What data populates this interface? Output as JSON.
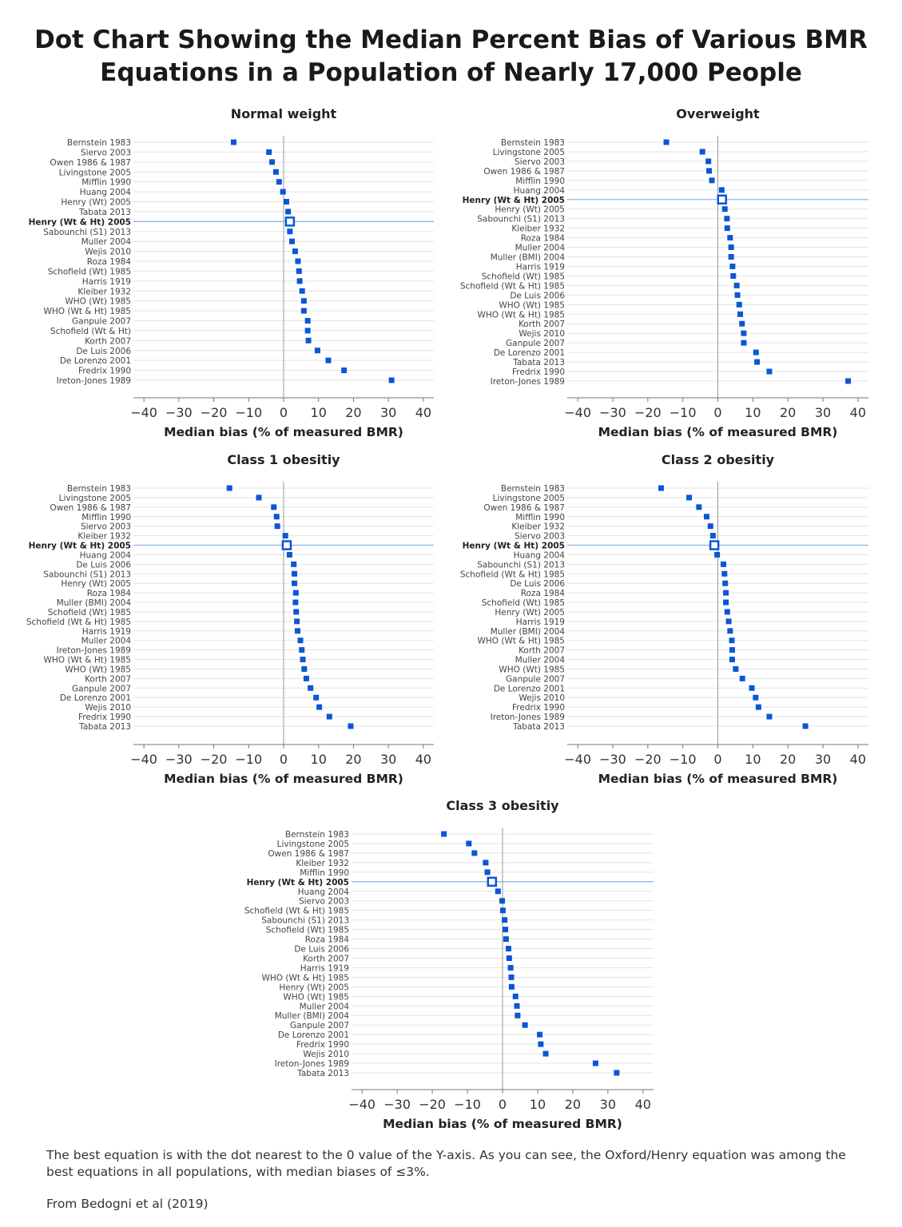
{
  "title_line1": "Dot Chart Showing the Median Percent Bias of Various BMR",
  "title_line2": "Equations in a Population of Nearly 17,000 People",
  "footer": {
    "note": "The best equation is with the dot nearest to the 0 value of the Y-axis. As you can see, the Oxford/Henry equation was among the best equations in all populations, with median biases of ≤3%.",
    "source": "From Bedogni et al (2019)"
  },
  "colors": {
    "marker": "#0a56d6",
    "highlight_line": "#8fb3ec",
    "grid": "#e3e3e3",
    "zero_line": "#999999"
  },
  "chart_data": [
    {
      "type": "scatter",
      "title": "Normal weight",
      "xlabel": "Median bias (% of measured BMR)",
      "ylabel": "",
      "xlim": [
        -43,
        43
      ],
      "ticks": [
        -40,
        -30,
        -20,
        -10,
        0,
        10,
        20,
        30,
        40
      ],
      "grid": true,
      "highlight": "Henry (Wt & Ht) 2005",
      "categories": [
        "Bernstein 1983",
        "Siervo 2003",
        "Owen 1986 & 1987",
        "Livingstone 2005",
        "Mifflin 1990",
        "Huang 2004",
        "Henry (Wt) 2005",
        "Tabata 2013",
        "Henry (Wt & Ht) 2005",
        "Sabounchi (S1) 2013",
        "Muller 2004",
        "Wejis 2010",
        "Roza 1984",
        "Schofield (Wt) 1985",
        "Harris 1919",
        "Kleiber 1932",
        "WHO (Wt) 1985",
        "WHO (Wt & Ht) 1985",
        "Ganpule 2007",
        "Schofield (Wt & Ht)",
        "Korth 2007",
        "De Luis 2006",
        "De Lorenzo 2001",
        "Fredrix 1990",
        "Ireton-Jones 1989"
      ],
      "values": [
        -14.3,
        -4.2,
        -3.3,
        -2.2,
        -1.3,
        -0.2,
        0.8,
        1.3,
        1.8,
        1.8,
        2.4,
        3.3,
        4.1,
        4.4,
        4.6,
        5.3,
        5.8,
        5.8,
        6.9,
        6.9,
        7.1,
        9.7,
        12.8,
        17.3,
        30.9
      ]
    },
    {
      "type": "scatter",
      "title": "Overweight",
      "xlabel": "Median bias (% of measured BMR)",
      "ylabel": "",
      "xlim": [
        -43,
        43
      ],
      "ticks": [
        -40,
        -30,
        -20,
        -10,
        0,
        10,
        20,
        30,
        40
      ],
      "grid": true,
      "highlight": "Henry (Wt & Ht) 2005",
      "categories": [
        "Bernstein 1983",
        "Livingstone 2005",
        "Siervo 2003",
        "Owen 1986 & 1987",
        "Mifflin 1990",
        "Huang 2004",
        "Henry (Wt & Ht) 2005",
        "Henry (Wt) 2005",
        "Sabounchi (S1) 2013",
        "Kleiber 1932",
        "Roza 1984",
        "Muller 2004",
        "Muller (BMI) 2004",
        "Harris 1919",
        "Schofield (Wt) 1985",
        "Schofield (Wt & Ht) 1985",
        "De Luis 2006",
        "WHO (Wt) 1985",
        "WHO (Wt & Ht) 1985",
        "Korth 2007",
        "Wejis 2010",
        "Ganpule 2007",
        "De Lorenzo 2001",
        "Tabata 2013",
        "Fredrix 1990",
        "Ireton-Jones 1989"
      ],
      "values": [
        -14.7,
        -4.4,
        -2.7,
        -2.5,
        -1.7,
        1.1,
        1.2,
        2.0,
        2.6,
        2.7,
        3.5,
        3.8,
        3.8,
        4.2,
        4.4,
        5.4,
        5.6,
        6.1,
        6.4,
        6.9,
        7.4,
        7.4,
        10.9,
        11.2,
        14.7,
        37.2
      ]
    },
    {
      "type": "scatter",
      "title": "Class 1 obesitiy",
      "xlabel": "Median bias (% of measured BMR)",
      "ylabel": "",
      "xlim": [
        -43,
        43
      ],
      "ticks": [
        -40,
        -30,
        -20,
        -10,
        0,
        10,
        20,
        30,
        40
      ],
      "grid": true,
      "highlight": "Henry (Wt & Ht) 2005",
      "categories": [
        "Bernstein 1983",
        "Livingstone 2005",
        "Owen 1986 & 1987",
        "Mifflin 1990",
        "Siervo 2003",
        "Kleiber 1932",
        "Henry (Wt & Ht) 2005",
        "Huang 2004",
        "De Luis 2006",
        "Sabounchi (S1) 2013",
        "Henry (Wt) 2005",
        "Roza 1984",
        "Muller (BMI) 2004",
        "Schofield (Wt) 1985",
        "Schofield (Wt & Ht) 1985",
        "Harris 1919",
        "Muller 2004",
        "Ireton-Jones 1989",
        "WHO (Wt & Ht) 1985",
        "WHO (Wt) 1985",
        "Korth 2007",
        "Ganpule 2007",
        "De Lorenzo 2001",
        "Wejis 2010",
        "Fredrix 1990",
        "Tabata 2013"
      ],
      "values": [
        -15.5,
        -7.1,
        -2.8,
        -2.0,
        -1.8,
        0.5,
        0.9,
        1.7,
        2.9,
        3.1,
        3.1,
        3.5,
        3.4,
        3.6,
        3.8,
        4.0,
        4.8,
        5.2,
        5.5,
        5.9,
        6.5,
        7.7,
        9.3,
        10.2,
        13.1,
        19.2
      ]
    },
    {
      "type": "scatter",
      "title": "Class 2 obesitiy",
      "xlabel": "Median bias (% of measured BMR)",
      "ylabel": "",
      "xlim": [
        -43,
        43
      ],
      "ticks": [
        -40,
        -30,
        -20,
        -10,
        0,
        10,
        20,
        30,
        40
      ],
      "grid": true,
      "highlight": "Henry (Wt & Ht) 2005",
      "categories": [
        "Bernstein 1983",
        "Livingstone 2005",
        "Owen 1986 & 1987",
        "Mifflin 1990",
        "Kleiber 1932",
        "Siervo 2003",
        "Henry (Wt & Ht) 2005",
        "Huang 2004",
        "Sabounchi (S1) 2013",
        "Schofield (Wt & Ht) 1985",
        "De Luis 2006",
        "Roza 1984",
        "Schofield (Wt) 1985",
        "Henry (Wt) 2005",
        "Harris 1919",
        "Muller (BMI) 2004",
        "WHO (Wt & Ht) 1985",
        "Korth 2007",
        "Muller 2004",
        "WHO (Wt) 1985",
        "Ganpule 2007",
        "De Lorenzo 2001",
        "Wejis 2010",
        "Fredrix 1990",
        "Ireton-Jones 1989",
        "Tabata 2013"
      ],
      "values": [
        -16.2,
        -8.2,
        -5.4,
        -3.2,
        -2.1,
        -1.4,
        -1.0,
        -0.2,
        1.6,
        1.9,
        2.1,
        2.3,
        2.3,
        2.7,
        3.1,
        3.5,
        4.0,
        4.1,
        4.1,
        5.1,
        7.0,
        9.7,
        10.8,
        11.6,
        14.7,
        25.0
      ]
    },
    {
      "type": "scatter",
      "title": "Class 3 obesitiy",
      "xlabel": "Median bias (% of measured BMR)",
      "ylabel": "",
      "xlim": [
        -43,
        43
      ],
      "ticks": [
        -40,
        -30,
        -20,
        -10,
        0,
        10,
        20,
        30,
        40
      ],
      "grid": true,
      "highlight": "Henry (Wt & Ht) 2005",
      "categories": [
        "Bernstein 1983",
        "Livingstone 2005",
        "Owen 1986 & 1987",
        "Kleiber 1932",
        "Mifflin 1990",
        "Henry (Wt & Ht) 2005",
        "Huang 2004",
        "Siervo 2003",
        "Schofield (Wt & Ht) 1985",
        "Sabounchi (S1) 2013",
        "Schofield (Wt) 1985",
        "Roza 1984",
        "De Luis 2006",
        "Korth 2007",
        "Harris 1919",
        "WHO (Wt & Ht) 1985",
        "Henry (Wt) 2005",
        "WHO (Wt) 1985",
        "Muller 2004",
        "Muller (BMI) 2004",
        "Ganpule 2007",
        "De Lorenzo 2001",
        "Fredrix 1990",
        "Wejis 2010",
        "Ireton-Jones 1989",
        "Tabata 2013"
      ],
      "values": [
        -16.7,
        -9.6,
        -8.0,
        -4.8,
        -4.3,
        -3.0,
        -1.3,
        -0.1,
        0.1,
        0.6,
        0.8,
        1.0,
        1.7,
        1.9,
        2.3,
        2.5,
        2.6,
        3.7,
        4.1,
        4.3,
        6.4,
        10.6,
        10.9,
        12.3,
        26.5,
        32.5
      ]
    }
  ]
}
